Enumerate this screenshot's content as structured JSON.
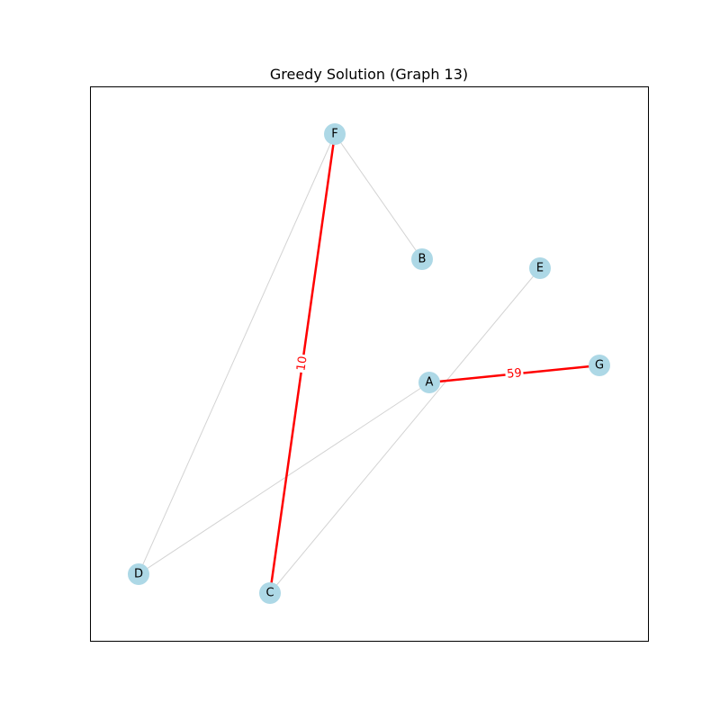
{
  "title": "Greedy Solution (Graph 13)",
  "colors": {
    "node_fill": "#add8e6",
    "edge_default": "#d3d3d3",
    "edge_selected": "#ff0000",
    "frame": "#000000"
  },
  "graph": {
    "nodes": [
      {
        "id": "A",
        "label": "A"
      },
      {
        "id": "B",
        "label": "B"
      },
      {
        "id": "C",
        "label": "C"
      },
      {
        "id": "D",
        "label": "D"
      },
      {
        "id": "E",
        "label": "E"
      },
      {
        "id": "F",
        "label": "F"
      },
      {
        "id": "G",
        "label": "G"
      }
    ],
    "edges": [
      {
        "source": "F",
        "target": "B",
        "selected": false
      },
      {
        "source": "F",
        "target": "D",
        "selected": false
      },
      {
        "source": "A",
        "target": "D",
        "selected": false
      },
      {
        "source": "C",
        "target": "E",
        "selected": false
      },
      {
        "source": "F",
        "target": "C",
        "selected": true,
        "weight": "10"
      },
      {
        "source": "A",
        "target": "G",
        "selected": true,
        "weight": "59"
      }
    ]
  }
}
